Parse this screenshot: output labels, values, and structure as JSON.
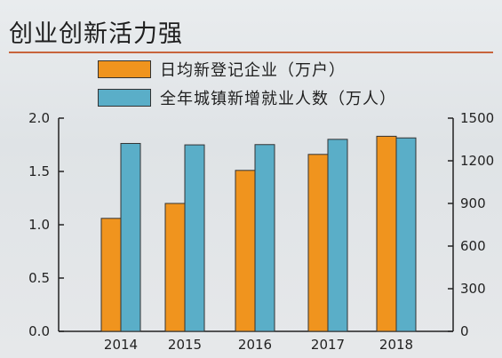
{
  "title": "创业创新活力强",
  "chart_data": {
    "type": "bar",
    "title": "创业创新活力强",
    "categories": [
      "2014",
      "2015",
      "2016",
      "2017",
      "2018"
    ],
    "series": [
      {
        "name": "日均新登记企业（万户）",
        "values": [
          1.06,
          1.2,
          1.51,
          1.66,
          1.83
        ],
        "axis": "left",
        "color": "#f0941e"
      },
      {
        "name": "全年城镇新增就业人数（万人）",
        "values": [
          1322,
          1312,
          1314,
          1351,
          1361
        ],
        "axis": "right",
        "color": "#5aaec8"
      }
    ],
    "y_left": {
      "lim": [
        0,
        2.0
      ],
      "ticks": [
        "0.0",
        "0.5",
        "1.0",
        "1.5",
        "2.0"
      ]
    },
    "y_right": {
      "lim": [
        0,
        1500
      ],
      "ticks": [
        "0",
        "300",
        "600",
        "900",
        "1200",
        "1500"
      ]
    },
    "legend_position": "top",
    "grid": false
  }
}
